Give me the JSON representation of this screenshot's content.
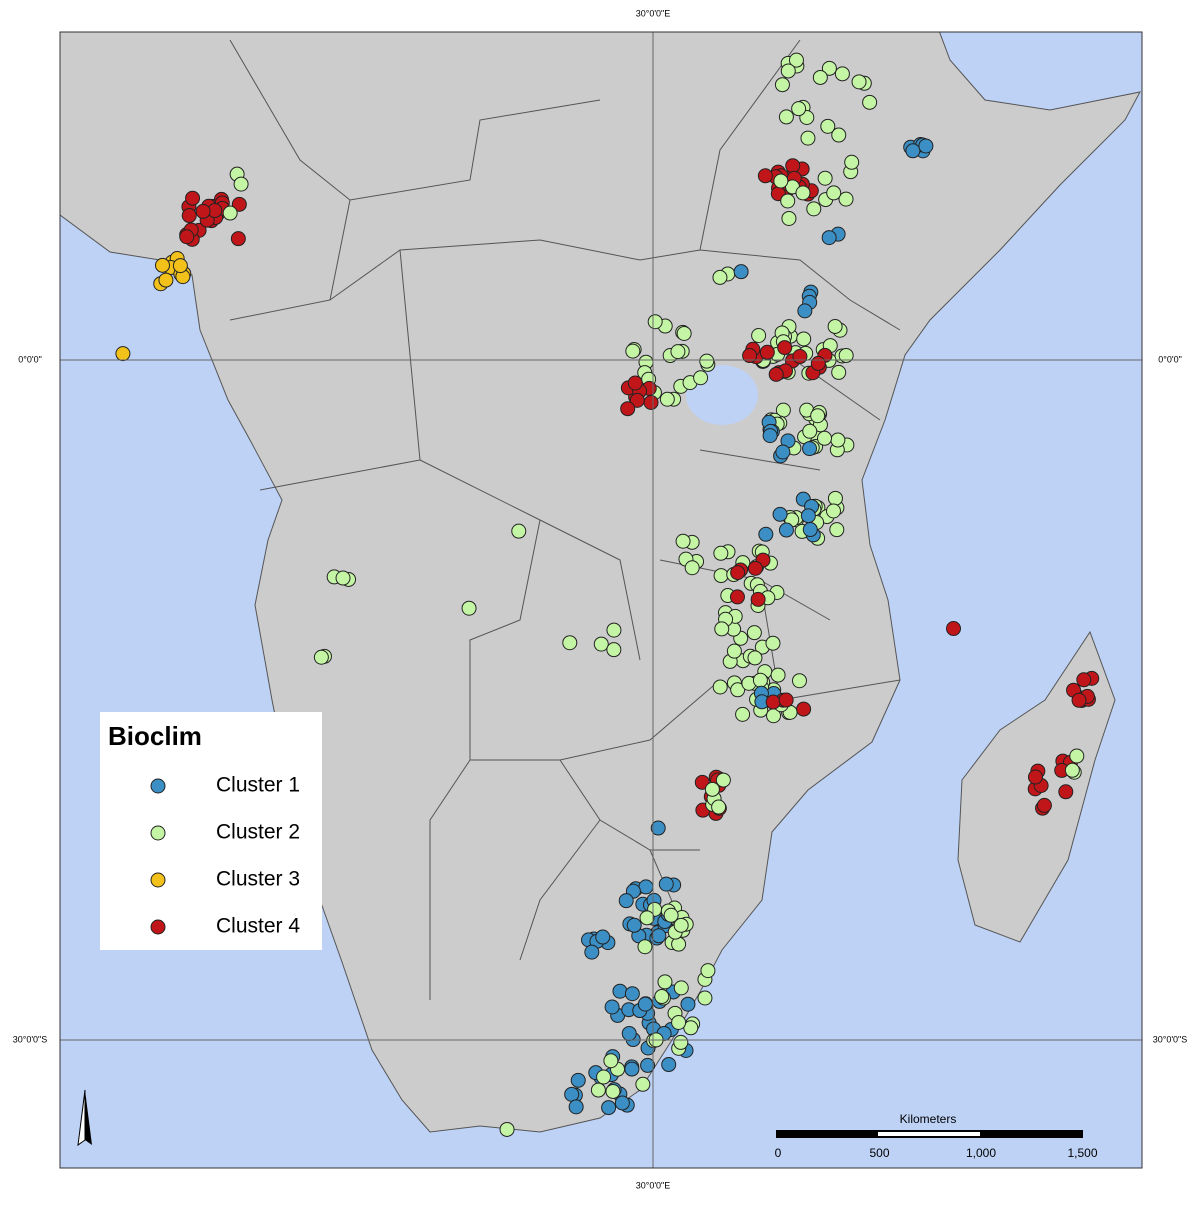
{
  "map": {
    "graticule": {
      "top": "30°0'0\"E",
      "bottom": "30°0'0\"E",
      "equator_left": "0°0'0\"",
      "equator_right": "0°0'0\"",
      "south_left": "30°0'0\"S",
      "south_right": "30°0'0\"S"
    },
    "legend": {
      "title": "Bioclim",
      "items": [
        {
          "label": "Cluster 1",
          "color": "#3b8fc4"
        },
        {
          "label": "Cluster 2",
          "color": "#c4f5a4"
        },
        {
          "label": "Cluster 3",
          "color": "#f2c21b"
        },
        {
          "label": "Cluster 4",
          "color": "#c0161a"
        }
      ]
    },
    "scale_bar": {
      "title": "Kilometers",
      "labels": [
        "0",
        "500",
        "1,000",
        "1,500"
      ]
    }
  }
}
